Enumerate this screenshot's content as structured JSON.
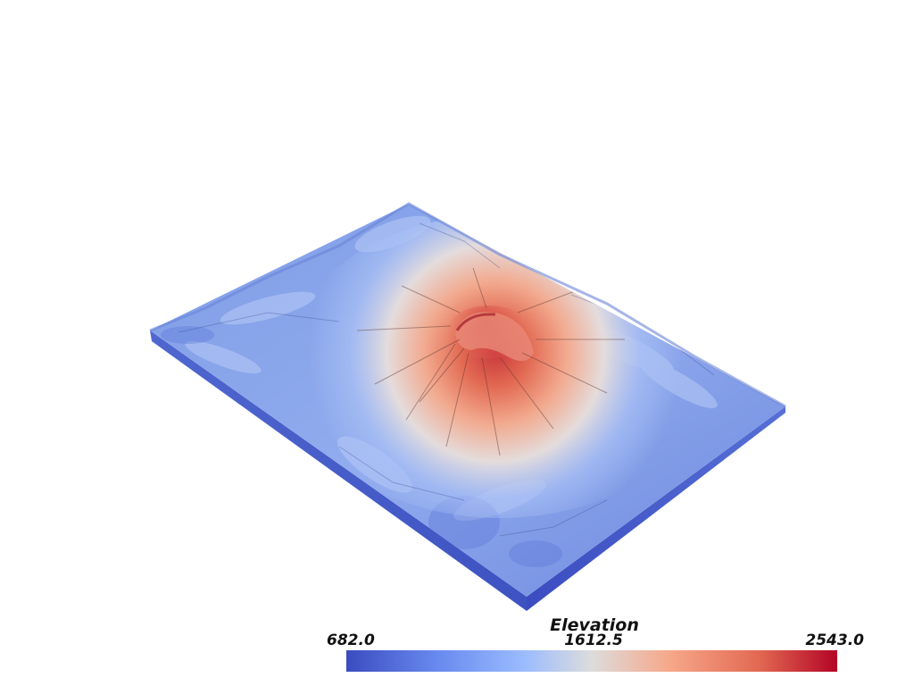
{
  "scene": {
    "subject": "3D shaded terrain elevation surface of a volcano",
    "colormap": "coolwarm",
    "background": "#ffffff"
  },
  "scalar_bar": {
    "title": "Elevation",
    "min_label": "682.0",
    "mid_label": "1612.5",
    "max_label": "2543.0",
    "min_value": 682.0,
    "max_value": 2543.0,
    "colors": [
      "#3b4cc0",
      "#6788ee",
      "#9abbff",
      "#dddcdc",
      "#f7a789",
      "#e26952",
      "#b40426"
    ]
  }
}
